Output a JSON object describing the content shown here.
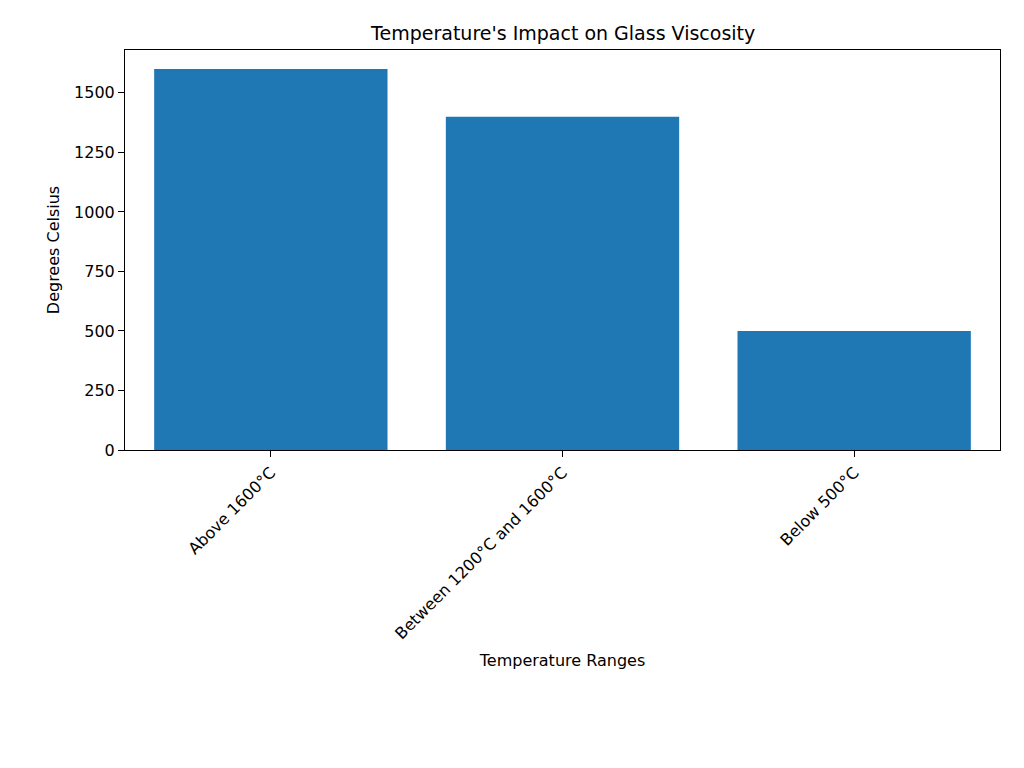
{
  "chart_data": {
    "type": "bar",
    "title": "Temperature's Impact on Glass Viscosity",
    "x_label": "Temperature Ranges",
    "y_label": "Degrees Celsius",
    "categories": [
      "Above 1600°C",
      "Between 1200°C and 1600°C",
      "Below 500°C"
    ],
    "values": [
      1600,
      1400,
      500
    ],
    "color": "#1f77b4",
    "ylim": [
      0,
      1680
    ],
    "yticks": [
      0,
      250,
      500,
      750,
      1000,
      1250,
      1500
    ],
    "grid": false
  }
}
